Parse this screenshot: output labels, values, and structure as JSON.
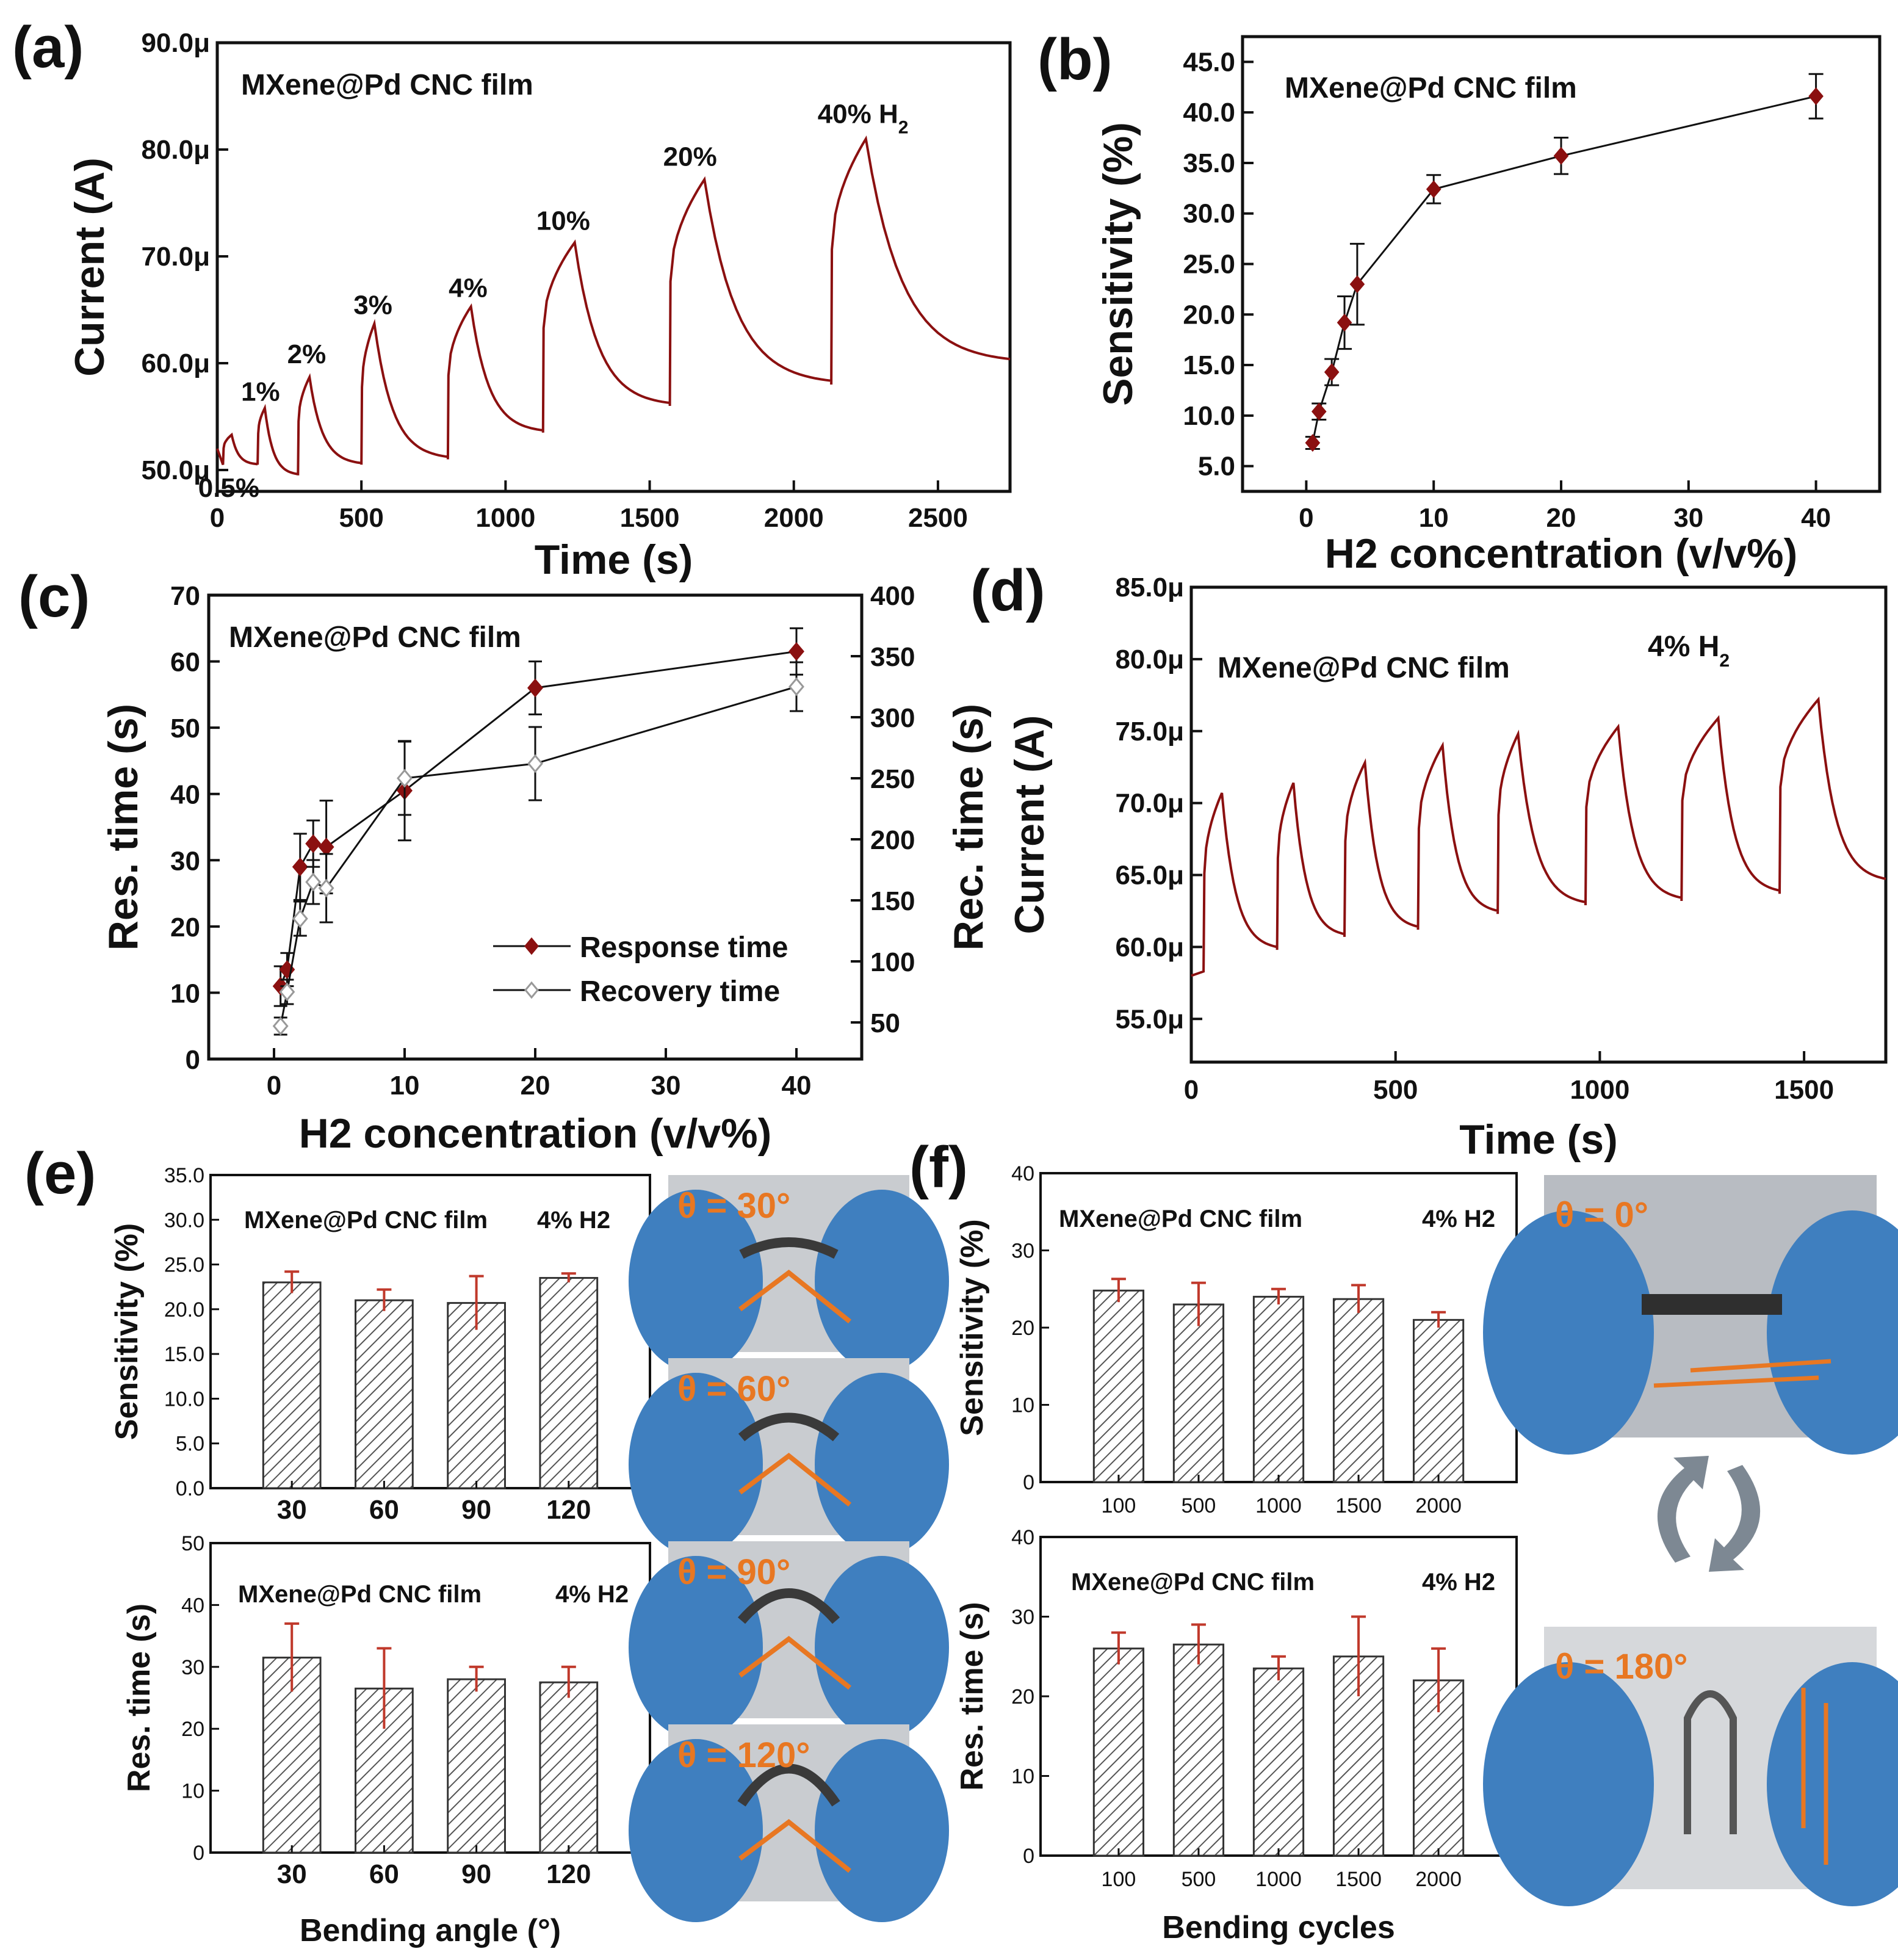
{
  "colors": {
    "data": "#8b1010",
    "accent": "#e87722",
    "glove": "#3f7fbf",
    "photo_bg": "#c9ccd0"
  },
  "panels": {
    "a": {
      "letter": "(a)",
      "title": "MXene@Pd CNC film"
    },
    "b": {
      "letter": "(b)",
      "title": "MXene@Pd CNC film"
    },
    "c": {
      "letter": "(c)",
      "title": "MXene@Pd CNC film"
    },
    "d": {
      "letter": "(d)",
      "title": "MXene@Pd CNC film",
      "annotation": "4% H",
      "annotation_sub": "2"
    },
    "e": {
      "letter": "(e)"
    },
    "f": {
      "letter": "(f)"
    }
  },
  "photos_e": [
    "θ = 30°",
    "θ = 60°",
    "θ = 90°",
    "θ = 120°"
  ],
  "photos_f": [
    "θ = 0°",
    "θ = 180°"
  ],
  "chart_data": [
    {
      "id": "a",
      "type": "line",
      "title": "MXene@Pd CNC film",
      "xlabel": "Time (s)",
      "ylabel": "Current (A)",
      "xlim": [
        0,
        2750
      ],
      "ylim": [
        48,
        90
      ],
      "xticks": [
        0,
        500,
        1000,
        1500,
        2000,
        2500
      ],
      "yticks": [
        50,
        60,
        70,
        80,
        90
      ],
      "ytick_labels": [
        "50.0μ",
        "60.0μ",
        "70.0μ",
        "80.0μ",
        "90.0μ"
      ],
      "annotations": [
        {
          "text": "0.5%",
          "x": 40,
          "y": 47.5
        },
        {
          "text": "1%",
          "x": 150,
          "y": 56.5
        },
        {
          "text": "2%",
          "x": 310,
          "y": 60
        },
        {
          "text": "3%",
          "x": 540,
          "y": 64.6
        },
        {
          "text": "4%",
          "x": 870,
          "y": 66.2
        },
        {
          "text": "10%",
          "x": 1200,
          "y": 72.5
        },
        {
          "text": "20%",
          "x": 1640,
          "y": 78.5
        },
        {
          "text": "40% H",
          "sub": "2",
          "x": 2240,
          "y": 82.5
        }
      ],
      "pulses": [
        {
          "t_on": 20,
          "t_off": 50,
          "base": 50.5,
          "peak": 53.3
        },
        {
          "t_on": 140,
          "t_off": 165,
          "base": 50.5,
          "peak": 55.8
        },
        {
          "t_on": 280,
          "t_off": 320,
          "base": 49.5,
          "peak": 58.7
        },
        {
          "t_on": 500,
          "t_off": 545,
          "base": 50.5,
          "peak": 63.7
        },
        {
          "t_on": 800,
          "t_off": 880,
          "base": 51.0,
          "peak": 65.3
        },
        {
          "t_on": 1130,
          "t_off": 1240,
          "base": 53.5,
          "peak": 71.3
        },
        {
          "t_on": 1570,
          "t_off": 1690,
          "base": 56.0,
          "peak": 77.2
        },
        {
          "t_on": 2130,
          "t_off": 2250,
          "base": 58.0,
          "peak": 81.0
        }
      ],
      "end_value": 60.0
    },
    {
      "id": "b",
      "type": "line",
      "title": "MXene@Pd CNC film",
      "xlabel": "H2 concentration (v/v%)",
      "ylabel": "Sensitivity (%)",
      "xlim": [
        -5,
        45
      ],
      "ylim": [
        2.5,
        47.5
      ],
      "xticks": [
        0,
        10,
        20,
        30,
        40
      ],
      "yticks": [
        5,
        10,
        15,
        20,
        25,
        30,
        35,
        40,
        45
      ],
      "ytick_labels": [
        "5.0",
        "10.0",
        "15.0",
        "20.0",
        "25.0",
        "30.0",
        "35.0",
        "40.0",
        "45.0"
      ],
      "x": [
        0.5,
        1,
        2,
        3,
        4,
        10,
        20,
        40
      ],
      "y": [
        7.3,
        10.4,
        14.3,
        19.2,
        23.0,
        32.4,
        35.7,
        41.6
      ],
      "err": [
        0.6,
        0.8,
        1.3,
        2.6,
        4.0,
        1.4,
        1.8,
        2.2
      ]
    },
    {
      "id": "c",
      "type": "line",
      "title": "MXene@Pd CNC film",
      "xlabel": "H2 concentration (v/v%)",
      "ylabel": "Res. time (s)",
      "ylabel_right": "Rec. time (s)",
      "xlim": [
        -5,
        45
      ],
      "ylim": [
        0,
        70
      ],
      "ylim_right": [
        20,
        400
      ],
      "xticks": [
        0,
        10,
        20,
        30,
        40
      ],
      "yticks": [
        0,
        10,
        20,
        30,
        40,
        50,
        60,
        70
      ],
      "yticks_right": [
        50,
        100,
        150,
        200,
        250,
        300,
        350,
        400
      ],
      "legend_position": "lower-right",
      "series": [
        {
          "name": "Response time",
          "axis": "left",
          "marker": "filled-diamond",
          "x": [
            0.5,
            1,
            2,
            3,
            4,
            10,
            20,
            40
          ],
          "y": [
            11,
            13.5,
            29,
            32.5,
            32,
            40.5,
            56,
            61.5
          ],
          "err": [
            3,
            2.5,
            5,
            3.5,
            7,
            7.5,
            4,
            3.5
          ]
        },
        {
          "name": "Recovery time",
          "axis": "right",
          "marker": "open-diamond",
          "x": [
            0.5,
            1,
            2,
            3,
            4,
            10,
            20,
            40
          ],
          "y": [
            47,
            75,
            135,
            165,
            160,
            250,
            262,
            325
          ],
          "err": [
            7,
            10,
            14,
            18,
            28,
            30,
            30,
            20
          ]
        }
      ]
    },
    {
      "id": "d",
      "type": "line",
      "title": "MXene@Pd CNC film",
      "xlabel": "Time (s)",
      "ylabel": "Current (A)",
      "xlim": [
        0,
        1700
      ],
      "ylim": [
        52,
        85
      ],
      "xticks": [
        0,
        500,
        1000,
        1500
      ],
      "yticks": [
        55,
        60,
        65,
        70,
        75,
        80,
        85
      ],
      "ytick_labels": [
        "55.0μ",
        "60.0μ",
        "65.0μ",
        "70.0μ",
        "75.0μ",
        "80.0μ",
        "85.0μ"
      ],
      "pulses": [
        {
          "t_on": 30,
          "t_off": 75,
          "base": 58.3,
          "peak": 70.7
        },
        {
          "t_on": 210,
          "t_off": 250,
          "base": 59.8,
          "peak": 71.4
        },
        {
          "t_on": 375,
          "t_off": 425,
          "base": 60.7,
          "peak": 72.8
        },
        {
          "t_on": 555,
          "t_off": 615,
          "base": 61.2,
          "peak": 74.0
        },
        {
          "t_on": 750,
          "t_off": 800,
          "base": 62.3,
          "peak": 74.8
        },
        {
          "t_on": 965,
          "t_off": 1045,
          "base": 62.9,
          "peak": 75.3
        },
        {
          "t_on": 1200,
          "t_off": 1290,
          "base": 63.2,
          "peak": 75.9
        },
        {
          "t_on": 1440,
          "t_off": 1535,
          "base": 63.7,
          "peak": 77.2
        }
      ],
      "end_value": 64.5
    },
    {
      "id": "e1",
      "type": "bar",
      "title": "MXene@Pd CNC film",
      "annotation": "4% H2",
      "xlabel": "",
      "ylabel": "Sensitivity (%)",
      "categories": [
        "30",
        "60",
        "90",
        "120"
      ],
      "values": [
        23.0,
        21.0,
        20.7,
        23.5
      ],
      "err": [
        1.2,
        1.2,
        3.0,
        0.5
      ],
      "ylim": [
        0,
        35
      ],
      "yticks": [
        0,
        5,
        10,
        15,
        20,
        25,
        30,
        35
      ],
      "ytick_labels": [
        "0.0",
        "5.0",
        "10.0",
        "15.0",
        "20.0",
        "25.0",
        "30.0",
        "35.0"
      ]
    },
    {
      "id": "e2",
      "type": "bar",
      "title": "MXene@Pd CNC film",
      "annotation": "4% H2",
      "xlabel": "Bending angle (°)",
      "ylabel": "Res. time (s)",
      "categories": [
        "30",
        "60",
        "90",
        "120"
      ],
      "values": [
        31.5,
        26.5,
        28.0,
        27.5
      ],
      "err": [
        5.5,
        6.5,
        2.0,
        2.5
      ],
      "ylim": [
        0,
        50
      ],
      "yticks": [
        0,
        10,
        20,
        30,
        40,
        50
      ],
      "ytick_labels": [
        "0",
        "10",
        "20",
        "30",
        "40",
        "50"
      ]
    },
    {
      "id": "f1",
      "type": "bar",
      "title": "MXene@Pd CNC film",
      "annotation": "4% H2",
      "xlabel": "",
      "ylabel": "Sensitivity (%)",
      "categories": [
        "100",
        "500",
        "1000",
        "1500",
        "2000"
      ],
      "values": [
        24.8,
        23.0,
        24.0,
        23.7,
        21.0
      ],
      "err": [
        1.5,
        2.8,
        1.0,
        1.8,
        1.0
      ],
      "ylim": [
        0,
        40
      ],
      "yticks": [
        0,
        10,
        20,
        30,
        40
      ],
      "ytick_labels": [
        "0",
        "10",
        "20",
        "30",
        "40"
      ]
    },
    {
      "id": "f2",
      "type": "bar",
      "title": "MXene@Pd CNC film",
      "annotation": "4% H2",
      "xlabel": "Bending cycles",
      "ylabel": "Res. time (s)",
      "categories": [
        "100",
        "500",
        "1000",
        "1500",
        "2000"
      ],
      "values": [
        26.0,
        26.5,
        23.5,
        25.0,
        22.0
      ],
      "err": [
        2.0,
        2.5,
        1.5,
        5.0,
        4.0
      ],
      "ylim": [
        0,
        40
      ],
      "yticks": [
        0,
        10,
        20,
        30,
        40
      ],
      "ytick_labels": [
        "0",
        "10",
        "20",
        "30",
        "40"
      ]
    }
  ]
}
